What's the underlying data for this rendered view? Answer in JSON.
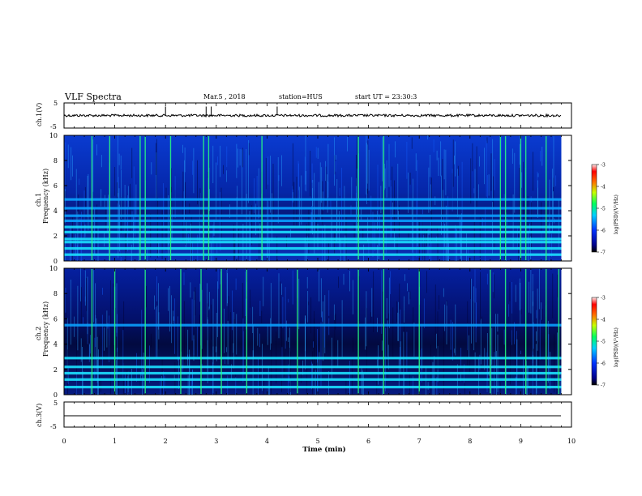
{
  "header": {
    "title": "VLF Spectra",
    "date": "Mar.5 , 2018",
    "station": "station=HUS",
    "start": "start UT = 23:30:3"
  },
  "chart_data": [
    {
      "type": "line",
      "panel": "ch1-waveform",
      "ylabel": "ch.1(V)",
      "ylim": [
        -5,
        5
      ],
      "yticks": [
        "5",
        "-5"
      ],
      "x_range_min": [
        0,
        9.8
      ],
      "baseline": 0.0,
      "spikes_min": [
        2.0,
        2.8,
        2.9,
        4.2
      ]
    },
    {
      "type": "heatmap",
      "panel": "ch1-spectrogram",
      "ylabel": "ch.1\nFrequency (kHz)",
      "ylim": [
        0,
        10
      ],
      "yticks": [
        "0",
        "2",
        "4",
        "6",
        "8",
        "10"
      ],
      "x_range_min": [
        0,
        9.8
      ],
      "colorbar": {
        "label": "log(PSD)(V²/Hz)",
        "ticks": [
          "-3",
          "-4",
          "-5",
          "-6",
          "-7"
        ],
        "range": [
          -7,
          -3
        ]
      },
      "horizontal_bands_khz": [
        0.5,
        1.0,
        1.5,
        1.75,
        2.3,
        2.7,
        3.2,
        3.6,
        4.2,
        4.9
      ],
      "vertical_bursts_min": [
        0.55,
        0.9,
        1.5,
        1.6,
        2.1,
        2.75,
        2.85,
        3.9,
        5.8,
        6.3,
        8.6,
        8.7,
        9.0,
        9.1,
        9.5
      ]
    },
    {
      "type": "heatmap",
      "panel": "ch2-spectrogram",
      "ylabel": "ch.2\nFrequency (kHz)",
      "ylim": [
        0,
        10
      ],
      "yticks": [
        "0",
        "2",
        "4",
        "6",
        "8",
        "10"
      ],
      "x_range_min": [
        0,
        9.8
      ],
      "colorbar": {
        "label": "log(PSD)(V²/Hz)",
        "ticks": [
          "-3",
          "-4",
          "-5",
          "-6",
          "-7"
        ],
        "range": [
          -7,
          -3
        ]
      },
      "horizontal_bands_khz": [
        0.6,
        1.2,
        1.7,
        2.2,
        2.9,
        5.5
      ],
      "vertical_bursts_min": [
        0.55,
        1.0,
        1.6,
        2.3,
        2.7,
        3.1,
        3.6,
        4.6,
        5.8,
        6.3,
        7.0,
        8.4,
        8.7,
        9.1,
        9.5,
        9.75
      ]
    },
    {
      "type": "line",
      "panel": "ch3-waveform",
      "ylabel": "ch.3(V)",
      "ylim": [
        -5,
        5
      ],
      "yticks": [
        "5",
        "-5"
      ],
      "x_range_min": [
        0,
        9.8
      ],
      "baseline": 0.0
    }
  ],
  "xaxis": {
    "label": "Time (min)",
    "range": [
      0,
      10
    ],
    "ticks": [
      "0",
      "1",
      "2",
      "3",
      "4",
      "5",
      "6",
      "7",
      "8",
      "9",
      "10"
    ]
  }
}
